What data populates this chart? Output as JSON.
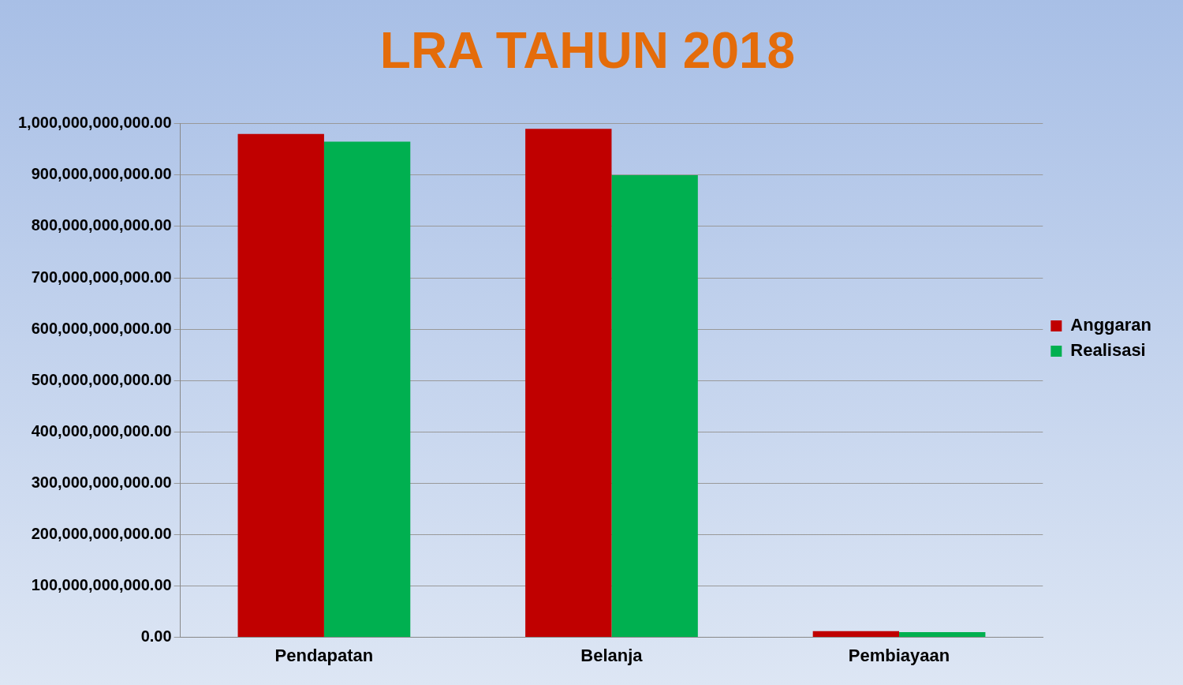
{
  "chart_data": {
    "type": "bar",
    "title": "LRA TAHUN 2018",
    "categories": [
      "Pendapatan",
      "Belanja",
      "Pembiayaan"
    ],
    "series": [
      {
        "name": "Anggaran",
        "color": "#c00000",
        "values": [
          980000000000,
          990000000000,
          12000000000
        ]
      },
      {
        "name": "Realisasi",
        "color": "#00b050",
        "values": [
          965000000000,
          900000000000,
          10000000000
        ]
      }
    ],
    "ylim": [
      0,
      1000000000000
    ],
    "yticks": [
      {
        "value": 0,
        "label": "0.00"
      },
      {
        "value": 100000000000,
        "label": "100,000,000,000.00"
      },
      {
        "value": 200000000000,
        "label": "200,000,000,000.00"
      },
      {
        "value": 300000000000,
        "label": "300,000,000,000.00"
      },
      {
        "value": 400000000000,
        "label": "400,000,000,000.00"
      },
      {
        "value": 500000000000,
        "label": "500,000,000,000.00"
      },
      {
        "value": 600000000000,
        "label": "600,000,000,000.00"
      },
      {
        "value": 700000000000,
        "label": "700,000,000,000.00"
      },
      {
        "value": 800000000000,
        "label": "800,000,000,000.00"
      },
      {
        "value": 900000000000,
        "label": "900,000,000,000.00"
      },
      {
        "value": 1000000000000,
        "label": "1,000,000,000,000.00"
      }
    ],
    "grid": "y",
    "legend": "right"
  }
}
